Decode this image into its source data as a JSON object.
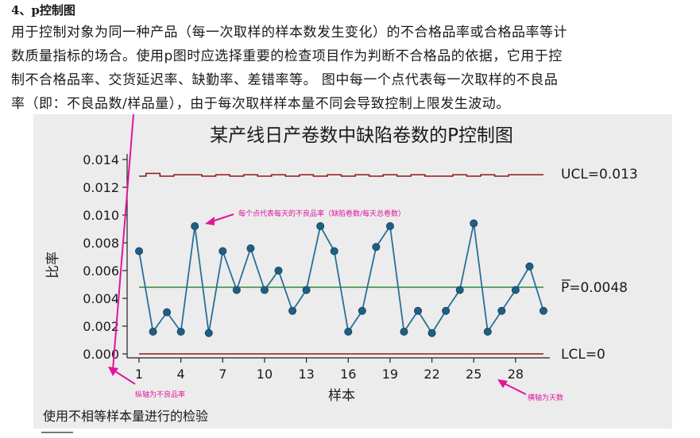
{
  "section_heading": "4、p控制图",
  "paragraph_lines": [
    "用于控制对象为同一种产品（每一次取样的样本数发生变化）的不合格品率或合格品率等计",
    "数质量指标的场合。使用p图时应选择重要的检查项目作为判断不合格品的依据，它用于控",
    "制不合格品率、交货延迟率、缺勤率、差错率等。 图中每一个点代表每一次取样的不良品",
    "率（即：不良品数/样品量），由于每次取样样本量不同会导致控制上限发生波动。"
  ],
  "chart_data": {
    "type": "line",
    "title": "某产线日产卷数中缺陷卷数的P控制图",
    "xlabel": "样本",
    "ylabel": "比率",
    "xlim": [
      1,
      30
    ],
    "ylim": [
      0,
      0.014
    ],
    "x_ticks": [
      1,
      4,
      7,
      10,
      13,
      16,
      19,
      22,
      25,
      28
    ],
    "x_tick_labels": [
      "1",
      "4",
      "7",
      "10",
      "13",
      "16",
      "19",
      "22",
      "25",
      "28"
    ],
    "y_ticks": [
      0,
      0.002,
      0.004,
      0.006,
      0.008,
      0.01,
      0.012,
      0.014
    ],
    "y_tick_labels": [
      "0.000",
      "0.002",
      "0.004",
      "0.006",
      "0.008",
      "0.010",
      "0.012",
      "0.014"
    ],
    "series": [
      {
        "x": [
          1,
          2,
          3,
          4,
          5,
          6,
          7,
          8,
          9,
          10,
          11,
          12,
          13,
          14,
          15,
          16,
          17,
          18,
          19,
          20,
          21,
          22,
          23,
          24,
          25,
          26,
          27,
          28,
          29,
          30
        ],
        "values": [
          0.0074,
          0.0016,
          0.003,
          0.0016,
          0.0092,
          0.0015,
          0.0074,
          0.0046,
          0.0076,
          0.0046,
          0.006,
          0.0031,
          0.0046,
          0.0092,
          0.0074,
          0.0016,
          0.0031,
          0.0077,
          0.0092,
          0.0016,
          0.0031,
          0.0015,
          0.0031,
          0.0046,
          0.0094,
          0.0016,
          0.0031,
          0.0046,
          0.0063,
          0.0031
        ],
        "color": "#2a6f97"
      }
    ],
    "ucl": {
      "values": [
        0.0128,
        0.013,
        0.0128,
        0.0129,
        0.0129,
        0.0128,
        0.0129,
        0.0128,
        0.0129,
        0.0128,
        0.0129,
        0.0128,
        0.0129,
        0.0128,
        0.0129,
        0.0128,
        0.0129,
        0.0128,
        0.0129,
        0.0128,
        0.0129,
        0.0128,
        0.0128,
        0.0129,
        0.0128,
        0.0129,
        0.0128,
        0.0129,
        0.0129,
        0.0129
      ],
      "label": "UCL=0.013",
      "color": "#8b1a1a"
    },
    "center": {
      "value": 0.0048,
      "label": "P=0.0048",
      "color": "#2e8b3a"
    },
    "lcl": {
      "value": 0,
      "label": "LCL=0",
      "color": "#8b1a1a"
    },
    "annotations": [
      {
        "text": "每个点代表每天的不良品率（缺陷卷数/每天总卷数）",
        "color": "#e0169c"
      },
      {
        "text": "纵轴为不良品率",
        "color": "#e0169c"
      },
      {
        "text": "横轴为天数",
        "color": "#e0169c"
      }
    ],
    "footer": "使用不相等样本量进行的检验",
    "grid": false
  }
}
